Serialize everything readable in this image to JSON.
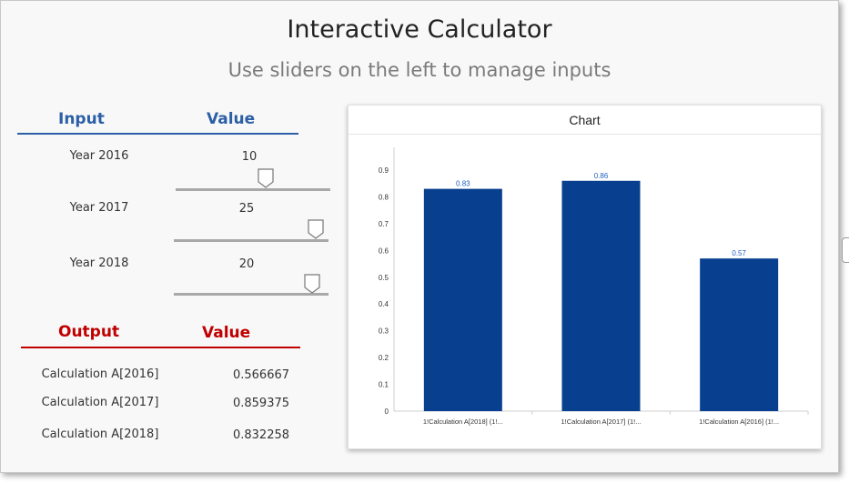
{
  "header": {
    "title": "Interactive Calculator",
    "subtitle": "Use sliders on the left to manage inputs"
  },
  "inputs": {
    "col_input": "Input",
    "col_value": "Value",
    "rows": [
      {
        "label": "Year 2016",
        "value": "10",
        "level": 0.59
      },
      {
        "label": "Year 2017",
        "value": "25",
        "level": 0.97
      },
      {
        "label": "Year 2018",
        "value": "20",
        "level": 0.94
      }
    ]
  },
  "outputs": {
    "col_output": "Output",
    "col_value": "Value",
    "rows": [
      {
        "label": "Calculation A[2016]",
        "value": "0.566667"
      },
      {
        "label": "Calculation A[2017]",
        "value": "0.859375"
      },
      {
        "label": "Calculation A[2018]",
        "value": "0.832258"
      }
    ]
  },
  "colors": {
    "input_accent": "#2b5fa6",
    "output_accent": "#c00000",
    "bar": "#08408f",
    "data_label": "#1f5fbf"
  },
  "chart_data": {
    "type": "bar",
    "title": "Chart",
    "categories": [
      "1!Calculation A[2018] (1!...",
      "1!Calculation A[2017] (1!...",
      "1!Calculation A[2016] (1!..."
    ],
    "values": [
      0.83,
      0.86,
      0.57
    ],
    "data_labels": [
      "0.83",
      "0.86",
      "0.57"
    ],
    "yticks": [
      "0",
      "0.1",
      "0.2",
      "0.3",
      "0.4",
      "0.5",
      "0.6",
      "0.7",
      "0.8",
      "0.9"
    ],
    "ylim": [
      0,
      0.9
    ],
    "xlabel": "",
    "ylabel": "",
    "grid": false,
    "legend": "none"
  }
}
